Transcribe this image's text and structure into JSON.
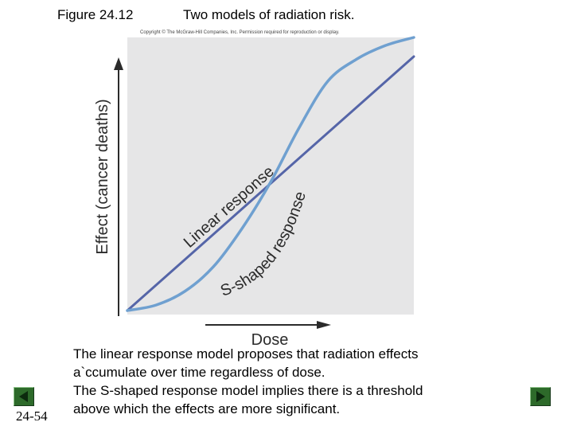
{
  "figure": {
    "label": "Figure 24.12",
    "title": "Two models of radiation risk.",
    "copyright": "Copyright © The McGraw-Hill Companies, Inc. Permission required for reproduction or display."
  },
  "chart_data": {
    "type": "line",
    "xlabel": "Dose",
    "ylabel": "Effect (cancer deaths)",
    "xlim": [
      0,
      1
    ],
    "ylim": [
      0,
      1
    ],
    "grid": false,
    "series": [
      {
        "name": "Linear response",
        "color": "#5565a8",
        "x": [
          0,
          1
        ],
        "y": [
          0,
          0.93
        ]
      },
      {
        "name": "S-shaped response",
        "color": "#6fa0d0",
        "x": [
          0,
          0.1,
          0.2,
          0.3,
          0.4,
          0.5,
          0.6,
          0.7,
          0.8,
          0.9,
          1.0
        ],
        "y": [
          0,
          0.02,
          0.07,
          0.16,
          0.3,
          0.47,
          0.67,
          0.84,
          0.92,
          0.97,
          1.0
        ]
      }
    ],
    "annotations": [
      {
        "text": "Linear response",
        "series": "Linear response"
      },
      {
        "text": "S-shaped response",
        "series": "S-shaped response"
      }
    ]
  },
  "caption": {
    "lines": [
      "The linear response model proposes that radiation effects",
      "a`ccumulate over time regardless of dose.",
      "The S-shaped response model implies there is a threshold",
      "above which the effects are more significant."
    ]
  },
  "slide": {
    "number": "24-54"
  },
  "colors": {
    "plot_background": "#e6e6e7",
    "nav_button": "#2d6a2a"
  }
}
